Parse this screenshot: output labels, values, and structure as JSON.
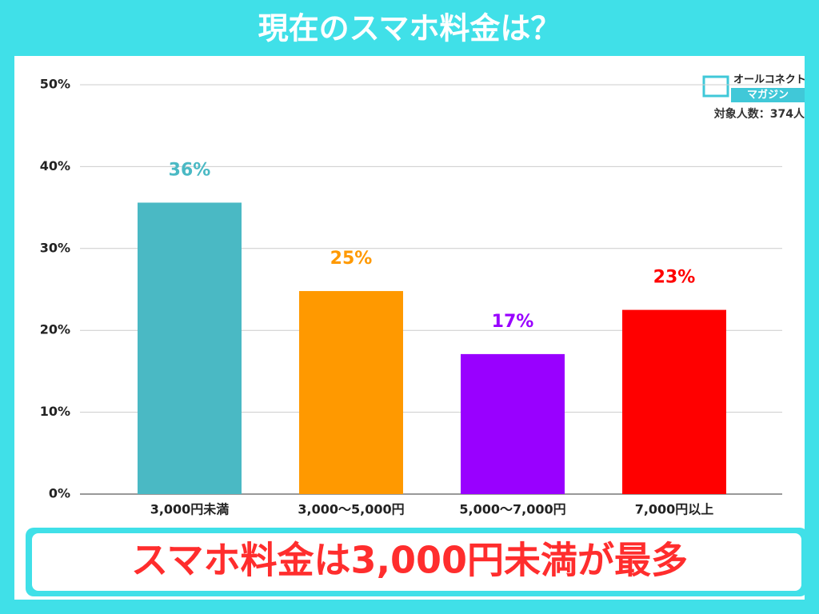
{
  "header": {
    "title": "現在のスマホ料金は？"
  },
  "logo": {
    "line1": "オールコネクト",
    "line2": "マガジン"
  },
  "note": "対象人数：374人",
  "chart_data": {
    "type": "bar",
    "categories": [
      "3,000円未満",
      "3,000〜5,000円",
      "5,000〜7,000円",
      "7,000円以上"
    ],
    "values": [
      35.6,
      24.8,
      17.1,
      22.5
    ],
    "value_labels": [
      "36%",
      "25%",
      "17%",
      "23%"
    ],
    "colors": [
      "#4ab9c4",
      "#ff9900",
      "#9900ff",
      "#ff0000"
    ],
    "ylim": [
      0,
      50
    ],
    "yticks": [
      {
        "value": 0,
        "label": "0%"
      },
      {
        "value": 10,
        "label": "10%"
      },
      {
        "value": 20,
        "label": "20%"
      },
      {
        "value": 30,
        "label": "30%"
      },
      {
        "value": 40,
        "label": "40%"
      },
      {
        "value": 50,
        "label": "50%"
      }
    ],
    "grid": true
  },
  "footer": {
    "conclusion": "スマホ料金は3,000円未満が最多"
  }
}
